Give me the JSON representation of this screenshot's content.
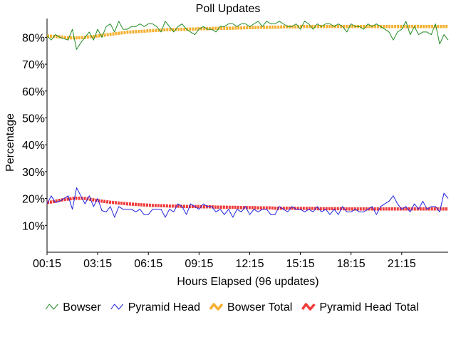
{
  "chart_data": {
    "type": "line",
    "title": "Poll Updates",
    "xlabel": "Hours Elapsed (96 updates)",
    "ylabel": "Percentage",
    "xlim": [
      0,
      95
    ],
    "ylim": [
      0,
      87
    ],
    "grid": false,
    "legend_position": "bottom",
    "x_ticks": [
      {
        "label": "00:15",
        "x": 0
      },
      {
        "label": "03:15",
        "x": 12
      },
      {
        "label": "06:15",
        "x": 24
      },
      {
        "label": "09:15",
        "x": 36
      },
      {
        "label": "12:15",
        "x": 48
      },
      {
        "label": "15:15",
        "x": 60
      },
      {
        "label": "18:15",
        "x": 72
      },
      {
        "label": "21:15",
        "x": 84
      }
    ],
    "y_ticks": [
      {
        "label": "10%",
        "y": 10
      },
      {
        "label": "20%",
        "y": 20
      },
      {
        "label": "30%",
        "y": 30
      },
      {
        "label": "40%",
        "y": 40
      },
      {
        "label": "50%",
        "y": 50
      },
      {
        "label": "60%",
        "y": 60
      },
      {
        "label": "70%",
        "y": 70
      },
      {
        "label": "80%",
        "y": 80
      }
    ],
    "series": [
      {
        "name": "Bowser",
        "color": "#228B22",
        "style": "thin",
        "values": [
          80.5,
          79,
          81,
          80,
          79.5,
          79,
          83,
          75.5,
          78,
          80,
          82,
          79,
          83,
          80,
          84,
          85,
          82,
          86,
          83,
          83,
          84,
          84,
          85,
          84,
          85,
          85,
          84,
          82,
          86,
          84,
          82,
          84,
          85,
          83,
          82,
          81,
          83,
          84,
          83,
          83,
          82,
          84,
          84,
          85,
          85,
          84,
          85,
          85,
          84,
          85,
          86,
          84,
          86,
          85,
          85,
          86,
          85,
          84,
          84,
          85,
          83,
          86,
          85,
          83,
          85,
          84,
          85,
          85,
          84,
          85,
          84,
          82,
          85,
          84,
          84,
          83,
          85,
          84,
          85,
          84,
          83,
          82,
          79,
          82,
          83,
          86,
          81,
          84,
          81,
          82,
          82,
          81,
          85,
          77.5,
          81,
          79
        ]
      },
      {
        "name": "Pyramid Head",
        "color": "#2222DD",
        "style": "thin",
        "values": [
          18,
          21,
          18.5,
          19,
          20,
          21,
          16,
          24,
          21,
          18,
          21,
          17,
          20,
          15.5,
          15,
          17,
          13,
          17,
          16,
          16,
          16,
          15,
          16,
          14,
          14,
          16,
          16,
          16,
          13,
          16,
          15,
          18,
          17,
          14,
          18,
          17,
          16,
          18,
          17,
          17,
          15,
          16,
          14,
          16,
          13,
          16,
          15,
          17,
          14,
          16,
          15,
          16,
          16,
          14,
          14,
          17,
          16,
          15,
          17,
          16,
          16,
          15,
          16,
          15,
          17,
          15,
          16,
          14,
          16,
          14,
          17,
          15,
          15,
          16,
          15,
          15,
          16,
          17,
          14,
          17,
          18,
          19,
          21,
          18,
          16,
          17,
          15,
          18,
          16,
          19,
          16,
          17,
          17,
          15,
          22,
          20
        ]
      },
      {
        "name": "Bowser Total",
        "color": "#F5B031",
        "style": "thick",
        "values": [
          80.5,
          80.4,
          80.3,
          80.2,
          80,
          79.8,
          79.8,
          79.8,
          79.9,
          80,
          80.2,
          80.3,
          80.5,
          80.7,
          80.9,
          81.1,
          81.3,
          81.5,
          81.7,
          81.9,
          82,
          82.1,
          82.2,
          82.3,
          82.4,
          82.5,
          82.6,
          82.7,
          82.8,
          82.9,
          82.9,
          83,
          83,
          83,
          83.1,
          83.1,
          83.2,
          83.2,
          83.2,
          83.3,
          83.3,
          83.3,
          83.4,
          83.4,
          83.4,
          83.5,
          83.5,
          83.6,
          83.6,
          83.6,
          83.7,
          83.7,
          83.7,
          83.8,
          83.8,
          83.8,
          83.9,
          83.9,
          83.9,
          83.9,
          84,
          84,
          84,
          84,
          84,
          84,
          84,
          84,
          84,
          84,
          84,
          84,
          84,
          84,
          84,
          84,
          84,
          84,
          84,
          84,
          84,
          84,
          84,
          84,
          84,
          84,
          84,
          84,
          84,
          84,
          84,
          84,
          84,
          84,
          84,
          84
        ]
      },
      {
        "name": "Pyramid Head Total",
        "color": "#F03B3B",
        "style": "thick",
        "values": [
          18.5,
          18.7,
          19,
          19.3,
          19.6,
          19.8,
          20,
          20.1,
          20.1,
          20,
          19.8,
          19.5,
          19.2,
          19,
          18.8,
          18.6,
          18.5,
          18.3,
          18.2,
          18,
          17.9,
          17.8,
          17.7,
          17.6,
          17.5,
          17.4,
          17.4,
          17.3,
          17.3,
          17.2,
          17.2,
          17.1,
          17.1,
          17,
          17,
          17,
          17,
          16.9,
          16.9,
          16.9,
          16.8,
          16.8,
          16.8,
          16.7,
          16.7,
          16.7,
          16.6,
          16.6,
          16.6,
          16.6,
          16.5,
          16.5,
          16.5,
          16.5,
          16.4,
          16.4,
          16.4,
          16.4,
          16.4,
          16.3,
          16.3,
          16.3,
          16.3,
          16.3,
          16.2,
          16.2,
          16.2,
          16.2,
          16.2,
          16.2,
          16.2,
          16.1,
          16.1,
          16.1,
          16.1,
          16.1,
          16.1,
          16.1,
          16.1,
          16.1,
          16.1,
          16.1,
          16.1,
          16.1,
          16.1,
          16.1,
          16.1,
          16.1,
          16.1,
          16.1,
          16.1,
          16.1,
          16.1,
          16.1,
          16.1,
          16.1
        ]
      }
    ]
  }
}
